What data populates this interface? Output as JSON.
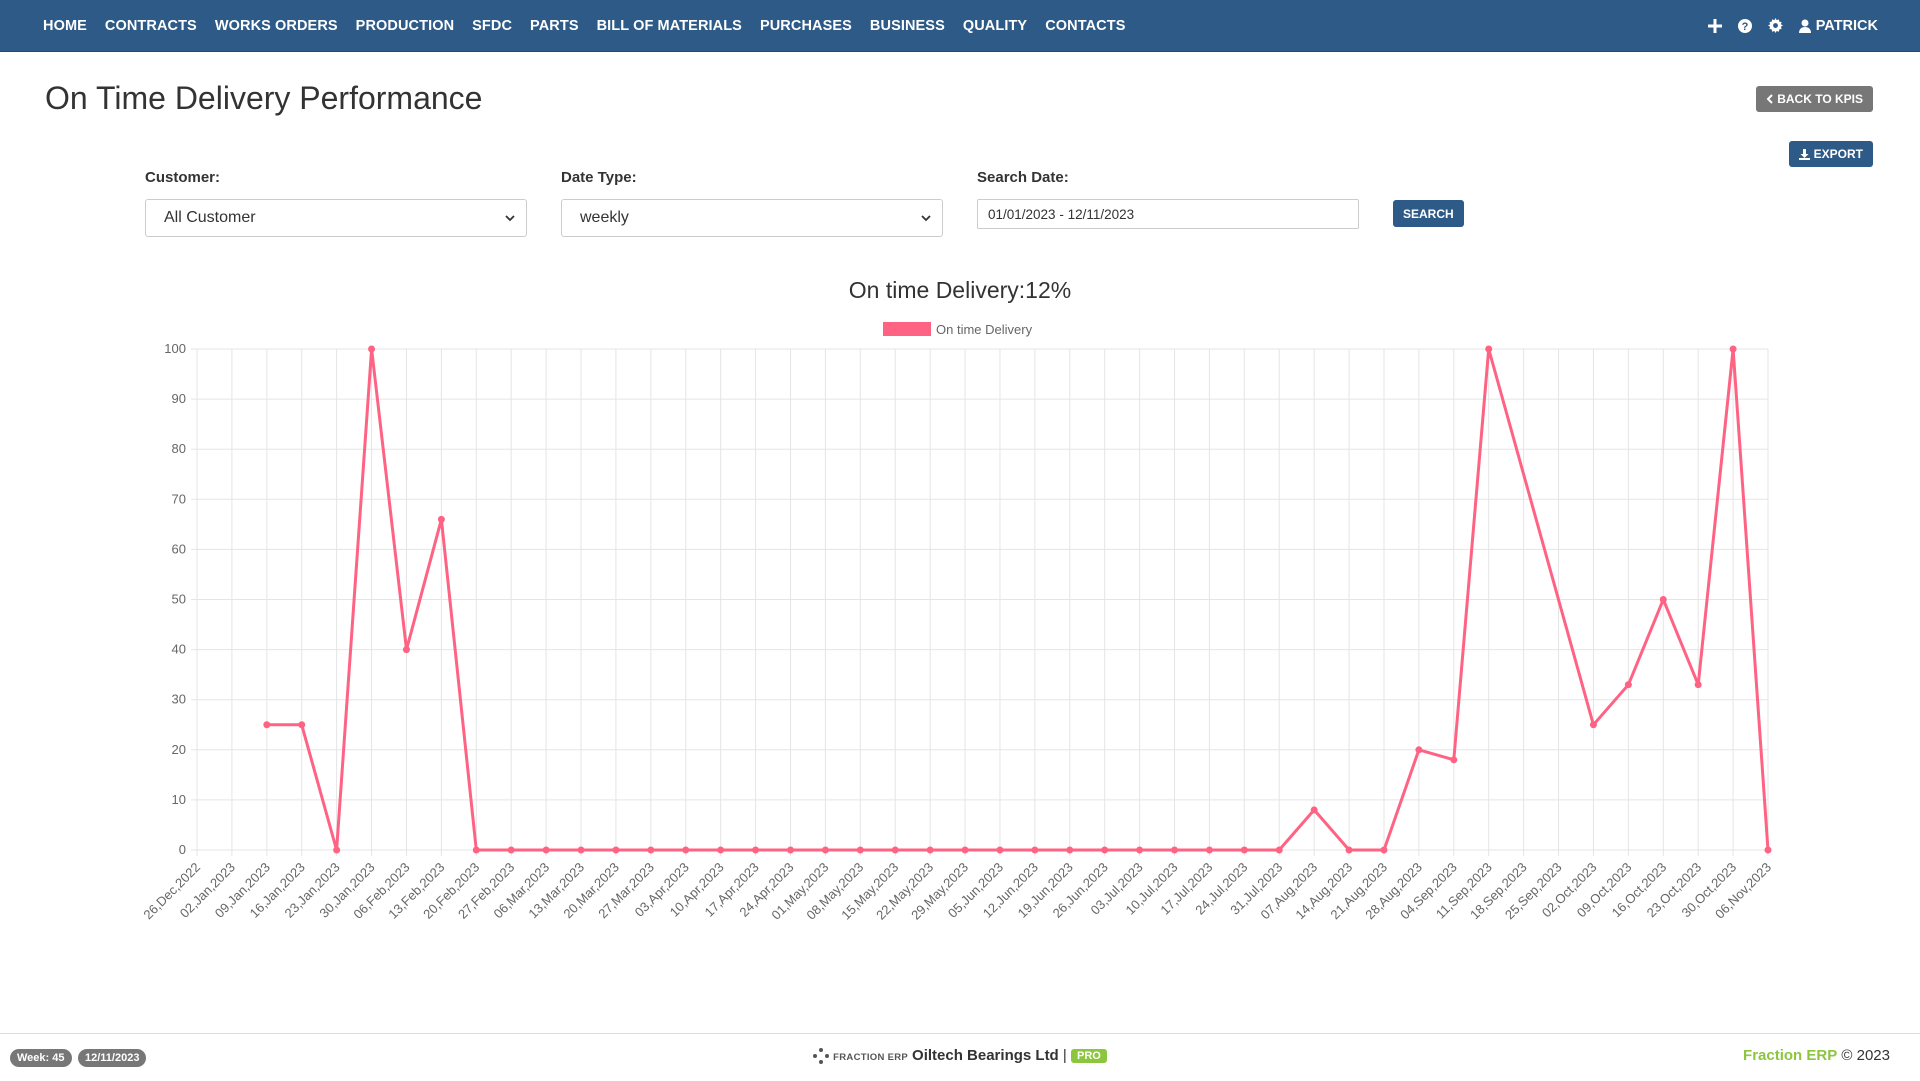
{
  "nav": {
    "items": [
      "HOME",
      "CONTRACTS",
      "WORKS ORDERS",
      "PRODUCTION",
      "SFDC",
      "PARTS",
      "BILL OF MATERIALS",
      "PURCHASES",
      "BUSINESS",
      "QUALITY",
      "CONTACTS"
    ],
    "user": "PATRICK",
    "icons": [
      "plus-icon",
      "help-icon",
      "gear-icon",
      "user-icon"
    ]
  },
  "page": {
    "title": "On Time Delivery Performance",
    "back_label": "BACK TO KPIS",
    "export_label": "EXPORT"
  },
  "filters": {
    "customer_label": "Customer:",
    "customer_value": "All Customer",
    "date_type_label": "Date Type:",
    "date_type_value": "weekly",
    "search_date_label": "Search Date:",
    "search_date_value": "01/01/2023 - 12/11/2023",
    "search_label": "SEARCH"
  },
  "chart_data": {
    "type": "line",
    "title": "On time Delivery:12%",
    "legend": "On time Delivery",
    "legend_position": "top",
    "color": "#ff6384",
    "grid": true,
    "ylim": [
      0,
      100
    ],
    "y_ticks": [
      0,
      10,
      20,
      30,
      40,
      50,
      60,
      70,
      80,
      90,
      100
    ],
    "categories": [
      "26,Dec,2022",
      "02,Jan,2023",
      "09,Jan,2023",
      "16,Jan,2023",
      "23,Jan,2023",
      "30,Jan,2023",
      "06,Feb,2023",
      "13,Feb,2023",
      "20,Feb,2023",
      "27,Feb,2023",
      "06,Mar,2023",
      "13,Mar,2023",
      "20,Mar,2023",
      "27,Mar,2023",
      "03,Apr,2023",
      "10,Apr,2023",
      "17,Apr,2023",
      "24,Apr,2023",
      "01,May,2023",
      "08,May,2023",
      "15,May,2023",
      "22,May,2023",
      "29,May,2023",
      "05,Jun,2023",
      "12,Jun,2023",
      "19,Jun,2023",
      "26,Jun,2023",
      "03,Jul,2023",
      "10,Jul,2023",
      "17,Jul,2023",
      "24,Jul,2023",
      "31,Jul,2023",
      "07,Aug,2023",
      "14,Aug,2023",
      "21,Aug,2023",
      "28,Aug,2023",
      "04,Sep,2023",
      "11,Sep,2023",
      "18,Sep,2023",
      "25,Sep,2023",
      "02,Oct,2023",
      "09,Oct,2023",
      "16,Oct,2023",
      "23,Oct,2023",
      "30,Oct,2023",
      "06,Nov,2023"
    ],
    "values": [
      null,
      null,
      25,
      25,
      0,
      100,
      40,
      66,
      0,
      0,
      0,
      0,
      0,
      0,
      0,
      0,
      0,
      0,
      0,
      0,
      0,
      0,
      0,
      0,
      0,
      0,
      0,
      0,
      0,
      0,
      0,
      0,
      8,
      0,
      0,
      20,
      18,
      100,
      null,
      null,
      25,
      33,
      50,
      33,
      100,
      0
    ]
  },
  "footer": {
    "week": "Week: 45",
    "date": "12/11/2023",
    "brand_small": "FRACTION ERP",
    "company": "Oiltech Bearings Ltd",
    "separator": "|",
    "pro": "PRO",
    "right_brand": "Fraction ERP",
    "right_copy": "© 2023"
  }
}
